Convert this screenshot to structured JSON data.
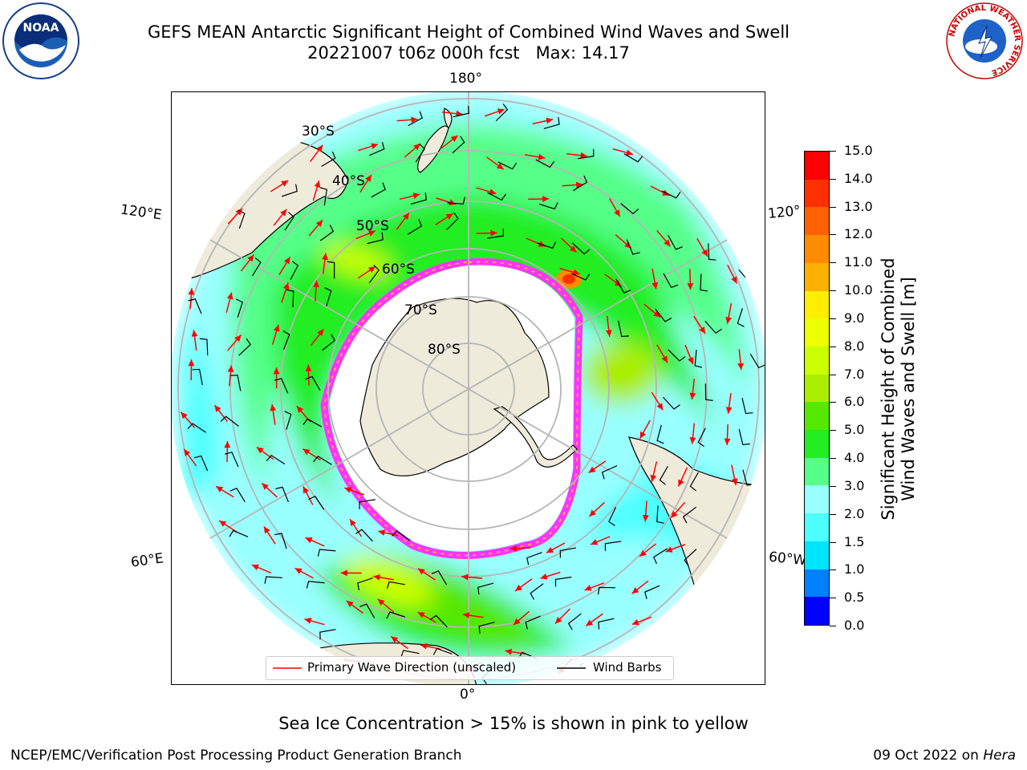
{
  "title": {
    "line1": "GEFS MEAN Antarctic Significant Height of Combined Wind Waves and Swell",
    "line2": "20221007 t06z 000h fcst   Max: 14.17"
  },
  "logos": {
    "left": "NOAA",
    "right": "NATIONAL WEATHER SERVICE"
  },
  "map": {
    "projection": "south-polar-stereographic",
    "longitude_labels": {
      "top": "180°",
      "bottom": "0°",
      "upper_left": "120°E",
      "lower_left": "60°E",
      "upper_right": "120°",
      "lower_right": "60°W"
    },
    "latitude_labels": [
      "30°S",
      "40°S",
      "50°S",
      "60°S",
      "70°S",
      "80°S"
    ],
    "land_color": "#efebdb",
    "grid_color": "#b5b5b5",
    "sea_ice_colors": [
      "#ff33ff",
      "#ff66cc",
      "#ffaa44"
    ]
  },
  "legend": {
    "wave_label": "Primary Wave Direction (unscaled)",
    "barb_label": "Wind Barbs",
    "wave_color": "#ff0000",
    "barb_color": "#000000"
  },
  "colorbar": {
    "title_line1": "Significant Height of Combined",
    "title_line2": "Wind Waves and Swell [m]",
    "ticks": [
      "0.0",
      "0.5",
      "1.0",
      "1.5",
      "2.0",
      "3.0",
      "4.0",
      "5.0",
      "6.0",
      "7.0",
      "8.0",
      "9.0",
      "10.0",
      "11.0",
      "12.0",
      "13.0",
      "14.0",
      "15.0"
    ],
    "colors": [
      "#0000ff",
      "#0080ff",
      "#00e5ff",
      "#4dffff",
      "#99ffff",
      "#55ff88",
      "#22ee22",
      "#55e800",
      "#aaee00",
      "#ccff00",
      "#eeff00",
      "#ffee00",
      "#ffb000",
      "#ff8c00",
      "#ff6000",
      "#ff3000",
      "#ff0000"
    ]
  },
  "caption": "Sea Ice Concentration > 15% is shown in pink to yellow",
  "footer": {
    "left": "NCEP/EMC/Verification Post Processing Product Generation Branch",
    "right_date": "09 Oct 2022 on ",
    "right_system": "Hera"
  }
}
